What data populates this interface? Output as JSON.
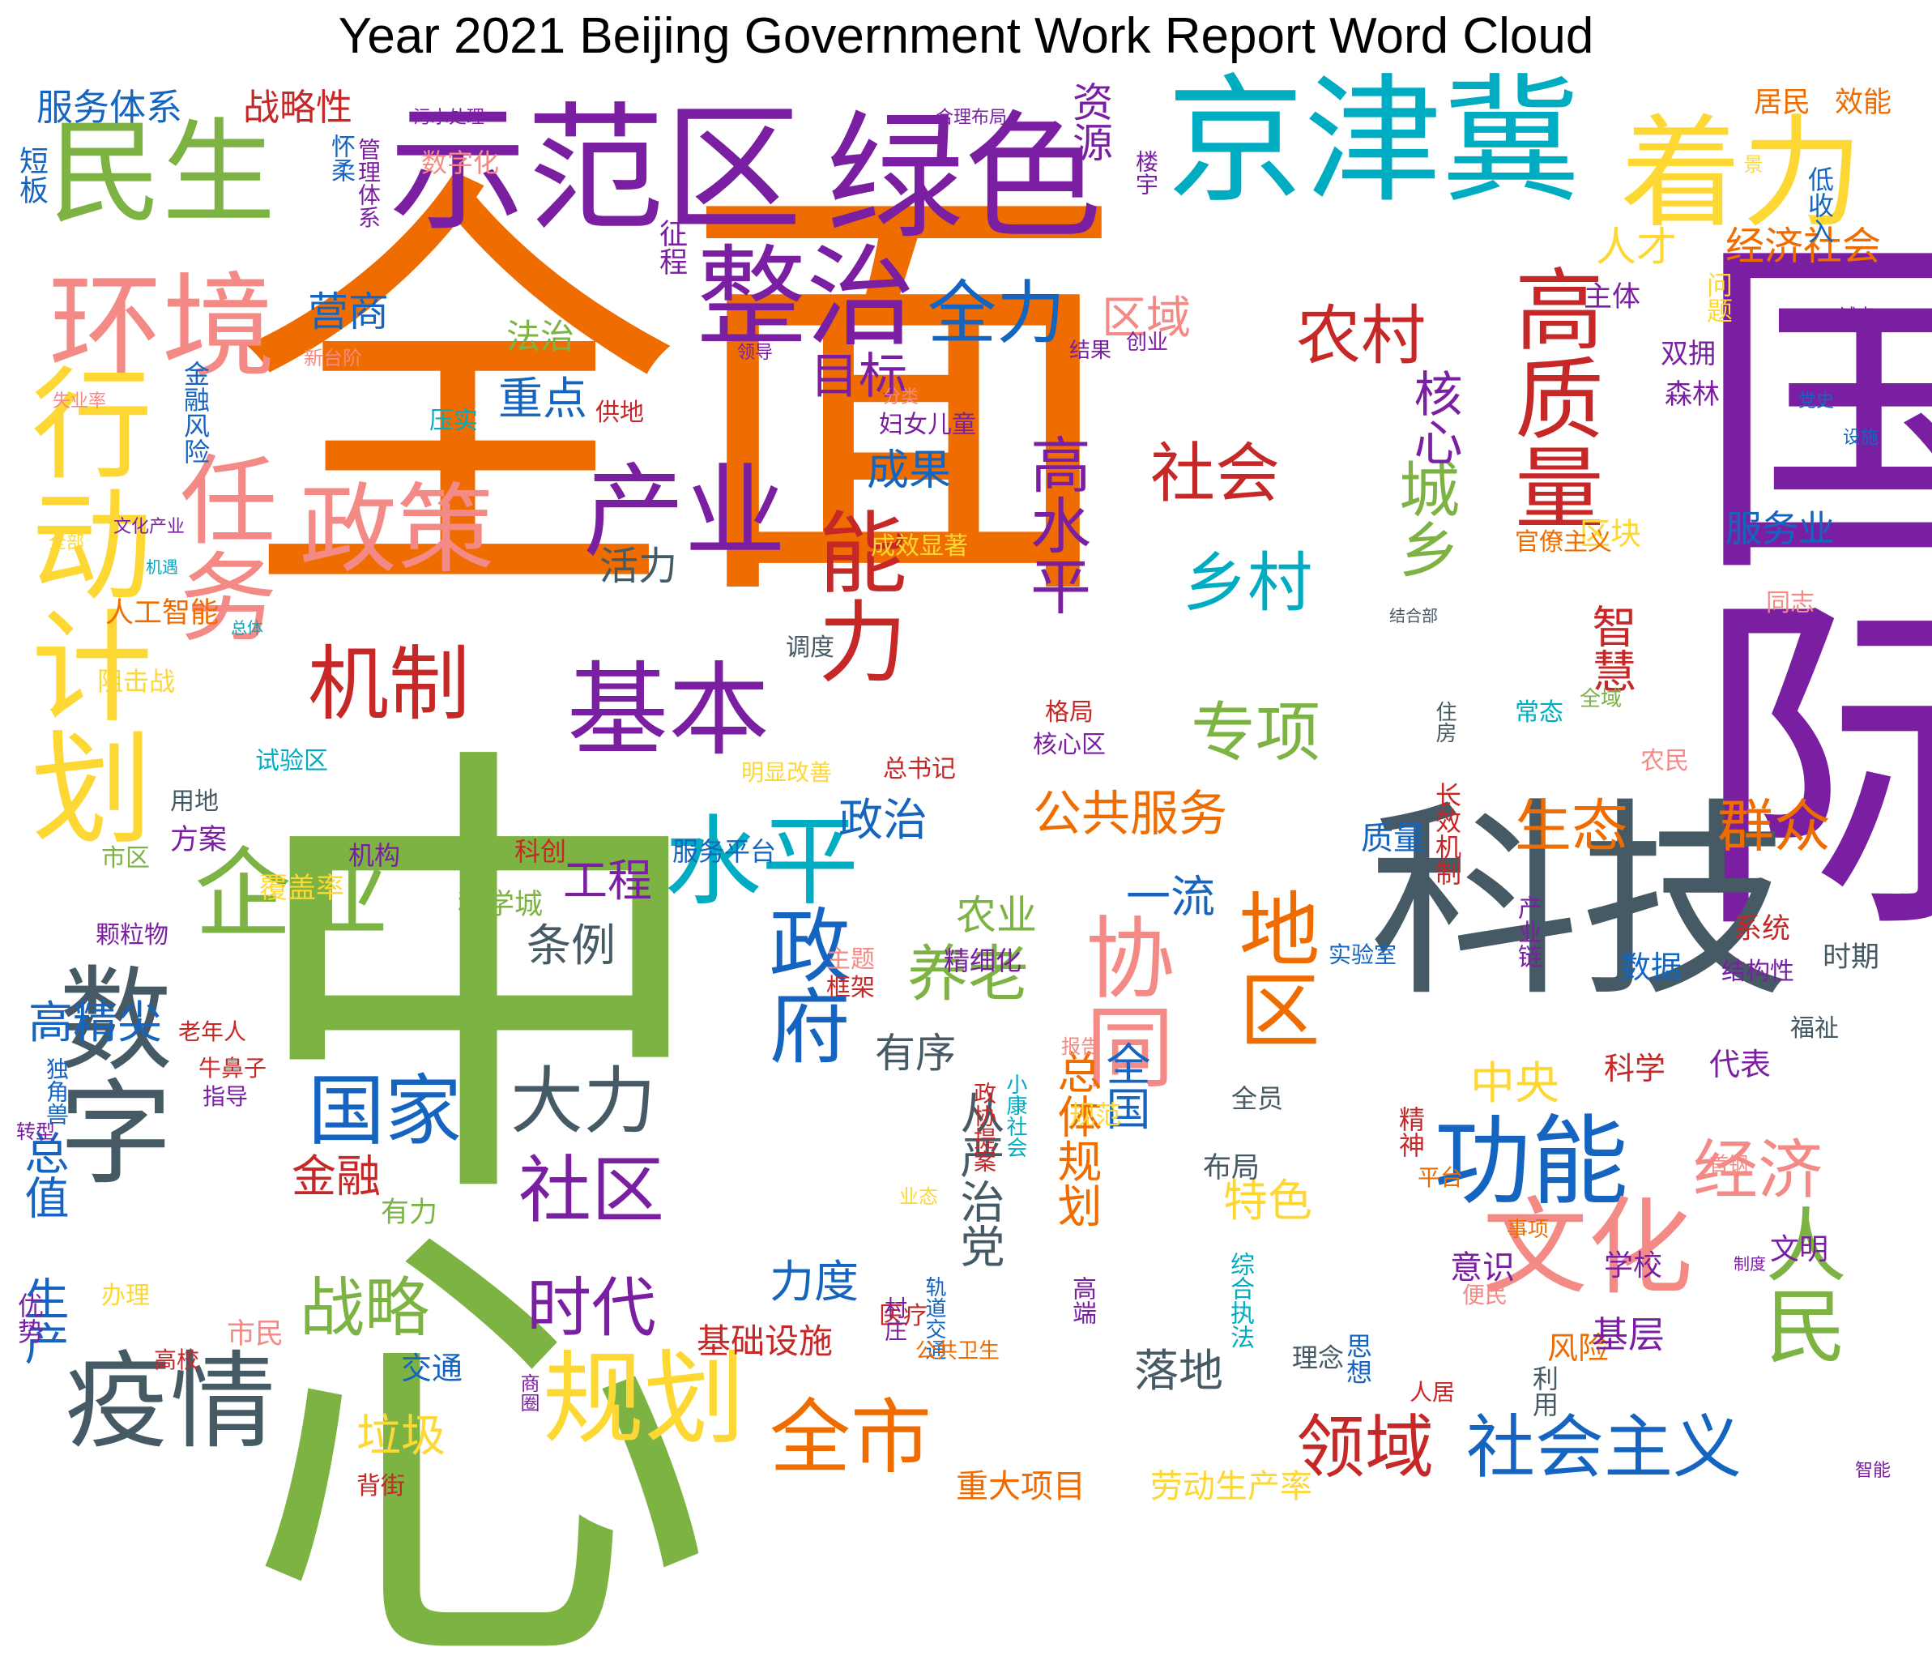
{
  "title": "Year 2021 Beijing Government Work Report Word Cloud",
  "palette": {
    "orange": "#EF6C00",
    "green": "#7CB342",
    "purple": "#7B1FA2",
    "slate": "#455A64",
    "cyan": "#00ACC1",
    "yellow": "#FDD835",
    "salmon": "#F48A85",
    "blue": "#1565C0",
    "red": "#C62828"
  },
  "words": [
    {
      "t": "全面",
      "c": "orange"
    },
    {
      "t": "中心",
      "c": "green"
    },
    {
      "t": "国际",
      "c": "purple"
    },
    {
      "t": "科技",
      "c": "slate"
    },
    {
      "t": "京津冀",
      "c": "cyan"
    },
    {
      "t": "示范区",
      "c": "purple"
    },
    {
      "t": "绿色",
      "c": "purple"
    },
    {
      "t": "着力",
      "c": "yellow"
    },
    {
      "t": "民生",
      "c": "green"
    },
    {
      "t": "环境",
      "c": "salmon"
    },
    {
      "t": "行动计划",
      "c": "yellow"
    },
    {
      "t": "任务",
      "c": "salmon"
    },
    {
      "t": "政策",
      "c": "salmon"
    },
    {
      "t": "整治",
      "c": "purple"
    },
    {
      "t": "产业",
      "c": "purple"
    },
    {
      "t": "能力",
      "c": "red"
    },
    {
      "t": "机制",
      "c": "red"
    },
    {
      "t": "基本",
      "c": "purple"
    },
    {
      "t": "水平",
      "c": "cyan"
    },
    {
      "t": "企业",
      "c": "green"
    },
    {
      "t": "数字",
      "c": "slate"
    },
    {
      "t": "疫情",
      "c": "slate"
    },
    {
      "t": "规划",
      "c": "yellow"
    },
    {
      "t": "政府",
      "c": "blue"
    },
    {
      "t": "协同",
      "c": "salmon"
    },
    {
      "t": "功能",
      "c": "blue"
    },
    {
      "t": "文化",
      "c": "salmon"
    },
    {
      "t": "高质量",
      "c": "red"
    },
    {
      "t": "人民",
      "c": "green"
    },
    {
      "t": "全市",
      "c": "orange"
    },
    {
      "t": "地区",
      "c": "orange"
    },
    {
      "t": "社会主义",
      "c": "blue"
    },
    {
      "t": "领域",
      "c": "red"
    },
    {
      "t": "国家",
      "c": "blue"
    },
    {
      "t": "大力",
      "c": "slate"
    },
    {
      "t": "社区",
      "c": "purple"
    },
    {
      "t": "高水平",
      "c": "purple"
    },
    {
      "t": "社会",
      "c": "red"
    },
    {
      "t": "乡村",
      "c": "cyan"
    },
    {
      "t": "专项",
      "c": "green"
    },
    {
      "t": "城乡",
      "c": "green"
    },
    {
      "t": "核心",
      "c": "purple"
    },
    {
      "t": "农村",
      "c": "red"
    },
    {
      "t": "全力",
      "c": "blue"
    },
    {
      "t": "战略",
      "c": "green"
    },
    {
      "t": "时代",
      "c": "purple"
    },
    {
      "t": "养老",
      "c": "green"
    },
    {
      "t": "生态",
      "c": "orange"
    },
    {
      "t": "群众",
      "c": "orange"
    },
    {
      "t": "经济",
      "c": "salmon"
    },
    {
      "t": "智慧",
      "c": "red"
    },
    {
      "t": "服务体系",
      "c": "blue"
    },
    {
      "t": "战略性",
      "c": "red"
    },
    {
      "t": "资源",
      "c": "purple"
    },
    {
      "t": "人才",
      "c": "yellow"
    },
    {
      "t": "经济社会",
      "c": "orange"
    },
    {
      "t": "目标",
      "c": "purple"
    },
    {
      "t": "区域",
      "c": "salmon"
    },
    {
      "t": "营商",
      "c": "blue"
    },
    {
      "t": "重点",
      "c": "blue"
    },
    {
      "t": "法治",
      "c": "green"
    },
    {
      "t": "成果",
      "c": "blue"
    },
    {
      "t": "活力",
      "c": "slate"
    },
    {
      "t": "公共服务",
      "c": "orange"
    },
    {
      "t": "政治",
      "c": "blue"
    },
    {
      "t": "工程",
      "c": "purple"
    },
    {
      "t": "条例",
      "c": "slate"
    },
    {
      "t": "有序",
      "c": "slate"
    },
    {
      "t": "一流",
      "c": "blue"
    },
    {
      "t": "农业",
      "c": "green"
    },
    {
      "t": "总体规划",
      "c": "orange"
    },
    {
      "t": "全国",
      "c": "blue"
    },
    {
      "t": "中央",
      "c": "yellow"
    },
    {
      "t": "特色",
      "c": "yellow"
    },
    {
      "t": "力度",
      "c": "blue"
    },
    {
      "t": "从严治党",
      "c": "slate"
    },
    {
      "t": "落地",
      "c": "slate"
    },
    {
      "t": "金融",
      "c": "red"
    },
    {
      "t": "高精尖",
      "c": "blue"
    },
    {
      "t": "垃圾",
      "c": "yellow"
    },
    {
      "t": "基础设施",
      "c": "red"
    },
    {
      "t": "重大项目",
      "c": "orange"
    },
    {
      "t": "劳动生产率",
      "c": "yellow"
    },
    {
      "t": "服务业",
      "c": "blue"
    },
    {
      "t": "总值",
      "c": "blue"
    },
    {
      "t": "生产",
      "c": "blue"
    },
    {
      "t": "覆盖率",
      "c": "yellow"
    },
    {
      "t": "科学城",
      "c": "green"
    },
    {
      "t": "长效机制",
      "c": "red"
    },
    {
      "t": "质量",
      "c": "blue"
    },
    {
      "t": "数据",
      "c": "blue"
    },
    {
      "t": "代表",
      "c": "purple"
    },
    {
      "t": "科学",
      "c": "red"
    },
    {
      "t": "风险",
      "c": "orange"
    },
    {
      "t": "基层",
      "c": "purple"
    },
    {
      "t": "思想",
      "c": "blue"
    },
    {
      "t": "区块",
      "c": "yellow"
    },
    {
      "t": "主体",
      "c": "purple"
    },
    {
      "t": "双拥",
      "c": "purple"
    },
    {
      "t": "森林",
      "c": "purple"
    },
    {
      "t": "精神",
      "c": "red"
    },
    {
      "t": "文明",
      "c": "purple"
    },
    {
      "t": "学校",
      "c": "purple"
    },
    {
      "t": "系统",
      "c": "red"
    },
    {
      "t": "时期",
      "c": "slate"
    },
    {
      "t": "市民",
      "c": "salmon"
    },
    {
      "t": "交通",
      "c": "blue"
    },
    {
      "t": "有力",
      "c": "green"
    },
    {
      "t": "方案",
      "c": "purple"
    },
    {
      "t": "居民",
      "c": "orange"
    },
    {
      "t": "效能",
      "c": "orange"
    },
    {
      "t": "意识",
      "c": "purple"
    },
    {
      "t": "理念",
      "c": "slate"
    },
    {
      "t": "数字化",
      "c": "salmon"
    },
    {
      "t": "布局",
      "c": "slate"
    },
    {
      "t": "问题",
      "c": "yellow"
    },
    {
      "t": "低收入",
      "c": "blue"
    },
    {
      "t": "人工智能",
      "c": "orange"
    },
    {
      "t": "阻击战",
      "c": "yellow"
    },
    {
      "t": "颗粒物",
      "c": "purple"
    },
    {
      "t": "独角兽",
      "c": "blue"
    },
    {
      "t": "老年人",
      "c": "red"
    },
    {
      "t": "牛鼻子",
      "c": "red"
    },
    {
      "t": "指导",
      "c": "purple"
    },
    {
      "t": "办理",
      "c": "yellow"
    },
    {
      "t": "优势",
      "c": "purple"
    },
    {
      "t": "高校",
      "c": "red"
    },
    {
      "t": "背街",
      "c": "red"
    },
    {
      "t": "金融风险",
      "c": "blue"
    },
    {
      "t": "试验区",
      "c": "cyan"
    },
    {
      "t": "总书记",
      "c": "red"
    },
    {
      "t": "明显改善",
      "c": "yellow"
    },
    {
      "t": "机构",
      "c": "purple"
    },
    {
      "t": "科创",
      "c": "red"
    },
    {
      "t": "服务平台",
      "c": "blue"
    },
    {
      "t": "成效显著",
      "c": "yellow"
    },
    {
      "t": "妇女儿童",
      "c": "purple"
    },
    {
      "t": "调度",
      "c": "slate"
    },
    {
      "t": "格局",
      "c": "red"
    },
    {
      "t": "核心区",
      "c": "purple"
    },
    {
      "t": "常态",
      "c": "cyan"
    },
    {
      "t": "全域",
      "c": "green"
    },
    {
      "t": "住房",
      "c": "slate"
    },
    {
      "t": "农民",
      "c": "salmon"
    },
    {
      "t": "同志",
      "c": "salmon"
    },
    {
      "t": "官僚主义",
      "c": "orange"
    },
    {
      "t": "结合部",
      "c": "slate"
    },
    {
      "t": "结构性",
      "c": "purple"
    },
    {
      "t": "福祉",
      "c": "slate"
    },
    {
      "t": "产业链",
      "c": "purple"
    },
    {
      "t": "实验室",
      "c": "blue"
    },
    {
      "t": "精细化",
      "c": "purple"
    },
    {
      "t": "报告",
      "c": "salmon"
    },
    {
      "t": "规范",
      "c": "yellow"
    },
    {
      "t": "全员",
      "c": "slate"
    },
    {
      "t": "平台",
      "c": "orange"
    },
    {
      "t": "事项",
      "c": "orange"
    },
    {
      "t": "制度",
      "c": "purple"
    },
    {
      "t": "便民",
      "c": "salmon"
    },
    {
      "t": "利用",
      "c": "slate"
    },
    {
      "t": "人居",
      "c": "red"
    },
    {
      "t": "综合执法",
      "c": "cyan"
    },
    {
      "t": "高端",
      "c": "purple"
    },
    {
      "t": "轨道交通",
      "c": "blue"
    },
    {
      "t": "公共卫生",
      "c": "orange"
    },
    {
      "t": "医疗",
      "c": "red"
    },
    {
      "t": "商圈",
      "c": "purple"
    },
    {
      "t": "小康社会",
      "c": "cyan"
    },
    {
      "t": "政协提案",
      "c": "red"
    },
    {
      "t": "框架",
      "c": "red"
    },
    {
      "t": "主题",
      "c": "salmon"
    },
    {
      "t": "市区",
      "c": "green"
    },
    {
      "t": "用地",
      "c": "slate"
    },
    {
      "t": "业态",
      "c": "yellow"
    },
    {
      "t": "村庄",
      "c": "purple"
    },
    {
      "t": "压实",
      "c": "cyan"
    },
    {
      "t": "供地",
      "c": "red"
    },
    {
      "t": "分类",
      "c": "salmon"
    },
    {
      "t": "结果",
      "c": "purple"
    },
    {
      "t": "创业",
      "c": "purple"
    },
    {
      "t": "领导",
      "c": "purple"
    },
    {
      "t": "新台阶",
      "c": "salmon"
    },
    {
      "t": "失业率",
      "c": "salmon"
    },
    {
      "t": "怀柔",
      "c": "blue"
    },
    {
      "t": "管理体系",
      "c": "purple"
    },
    {
      "t": "污水处理",
      "c": "purple"
    },
    {
      "t": "合理布局",
      "c": "purple"
    },
    {
      "t": "楼宇",
      "c": "purple"
    },
    {
      "t": "征程",
      "c": "purple"
    },
    {
      "t": "景",
      "c": "yellow"
    },
    {
      "t": "试点",
      "c": "purple"
    },
    {
      "t": "党史",
      "c": "blue"
    },
    {
      "t": "设施",
      "c": "blue"
    },
    {
      "t": "智能",
      "c": "purple"
    },
    {
      "t": "短板",
      "c": "blue"
    },
    {
      "t": "全部",
      "c": "yellow"
    },
    {
      "t": "文化产业",
      "c": "purple"
    },
    {
      "t": "机遇",
      "c": "cyan"
    },
    {
      "t": "总体",
      "c": "cyan"
    },
    {
      "t": "首钢",
      "c": "salmon"
    },
    {
      "t": "转型",
      "c": "purple"
    }
  ]
}
